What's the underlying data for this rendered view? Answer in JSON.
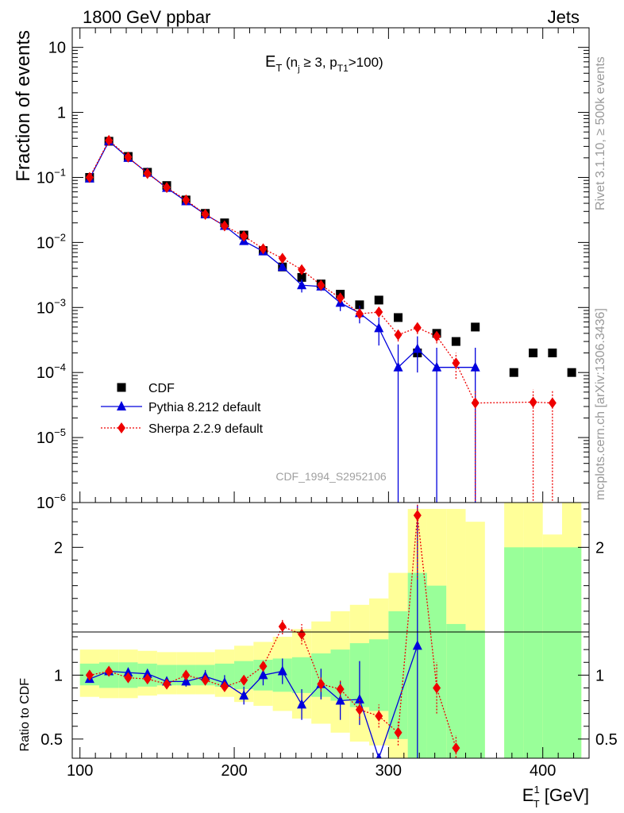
{
  "header": {
    "left": "1800 GeV ppbar",
    "right": "Jets",
    "title_main": "E",
    "title_sub": "T",
    "title_paren": " (n",
    "title_j": "j",
    "title_ge": " ≥ 3, p",
    "title_t1": "T1",
    "title_end": ">100)",
    "side_rivet": "Rivet 3.1.10, ≥ 500k events",
    "side_mcplots": "mcplots.cern.ch [arXiv:1306.3436]",
    "watermark": "CDF_1994_S2952106"
  },
  "colors": {
    "cdf": "#000000",
    "pythia": "#0000dd",
    "sherpa": "#ee0000",
    "band_inner": "#99ff99",
    "band_outer": "#ffff99"
  },
  "chart_data": [
    {
      "type": "scatter",
      "panel": "main",
      "ylabel": "Fraction of events",
      "yscale": "log",
      "ylim": [
        1e-06,
        20
      ],
      "xlim": [
        95,
        430
      ],
      "yticks": [
        {
          "v": 10,
          "m": "10",
          "e": ""
        },
        {
          "v": 1,
          "m": "1",
          "e": ""
        },
        {
          "v": 0.1,
          "m": "10",
          "e": "−1"
        },
        {
          "v": 0.01,
          "m": "10",
          "e": "−2"
        },
        {
          "v": 0.001,
          "m": "10",
          "e": "−3"
        },
        {
          "v": 0.0001,
          "m": "10",
          "e": "−4"
        },
        {
          "v": 1e-05,
          "m": "10",
          "e": "−5"
        },
        {
          "v": 1e-06,
          "m": "10",
          "e": "−6"
        }
      ],
      "legend": {
        "position": "bottom-left",
        "entries": [
          "CDF",
          "Pythia 8.212 default",
          "Sherpa 2.2.9 default"
        ]
      },
      "series": [
        {
          "name": "CDF",
          "marker": "square",
          "x": [
            106.25,
            118.75,
            131.25,
            143.75,
            156.25,
            168.75,
            181.25,
            193.75,
            206.25,
            218.75,
            231.25,
            243.75,
            256.25,
            268.75,
            281.25,
            293.75,
            306.25,
            318.75,
            331.25,
            343.75,
            356.25,
            381.25,
            393.75,
            406.25,
            418.75
          ],
          "y": [
            0.1,
            0.36,
            0.21,
            0.12,
            0.075,
            0.045,
            0.028,
            0.02,
            0.013,
            0.0075,
            0.0042,
            0.0029,
            0.0023,
            0.0016,
            0.0011,
            0.0013,
            0.0007,
            0.0002,
            0.0004,
            0.0003,
            0.0005,
            0.0001,
            0.0002,
            0.0002,
            0.0001
          ]
        },
        {
          "name": "Pythia 8.212 default",
          "marker": "triangle",
          "x": [
            106.25,
            118.75,
            131.25,
            143.75,
            156.25,
            168.75,
            181.25,
            193.75,
            206.25,
            218.75,
            231.25,
            243.75,
            256.25,
            268.75,
            281.25,
            293.75,
            306.25,
            318.75,
            331.25,
            356.25
          ],
          "y": [
            0.096,
            0.36,
            0.2,
            0.118,
            0.069,
            0.043,
            0.027,
            0.018,
            0.0105,
            0.0073,
            0.0042,
            0.0022,
            0.0021,
            0.00118,
            0.00082,
            0.00048,
            0.00012,
            0.00023,
            0.00012,
            0.00012
          ],
          "yerr_lo": [
            0.003,
            0.005,
            0.004,
            0.003,
            0.002,
            0.0015,
            0.001,
            0.0008,
            0.0006,
            0.0004,
            0.0003,
            0.0005,
            0.0003,
            0.0003,
            0.00025,
            0.00022,
            0.00012,
            0.00013,
            0.00012,
            0.00012
          ],
          "yerr_hi": [
            0.003,
            0.005,
            0.004,
            0.003,
            0.002,
            0.0015,
            0.001,
            0.0008,
            0.0006,
            0.0004,
            0.0003,
            0.0005,
            0.0003,
            0.0003,
            0.00025,
            0.00022,
            0.00015,
            0.00013,
            0.00012,
            0.00012
          ]
        },
        {
          "name": "Sherpa 2.2.9 default",
          "marker": "diamond",
          "x": [
            106.25,
            118.75,
            131.25,
            143.75,
            156.25,
            168.75,
            181.25,
            193.75,
            206.25,
            218.75,
            231.25,
            243.75,
            256.25,
            268.75,
            281.25,
            293.75,
            306.25,
            318.75,
            331.25,
            343.75,
            356.25,
            393.75,
            406.25
          ],
          "y": [
            0.1,
            0.37,
            0.205,
            0.115,
            0.07,
            0.045,
            0.027,
            0.018,
            0.0125,
            0.008,
            0.0057,
            0.0038,
            0.0022,
            0.0014,
            0.0008,
            0.00085,
            0.00038,
            0.00049,
            0.00036,
            0.00014,
            3.4e-05,
            3.5e-05,
            3.4e-05
          ],
          "yerr_lo": [
            0.002,
            0.004,
            0.003,
            0.002,
            0.0015,
            0.001,
            0.0007,
            0.0005,
            0.0004,
            0.0003,
            0.0003,
            0.0004,
            0.0002,
            0.0002,
            0.00012,
            0.00012,
            8e-05,
            0.0001,
            8e-05,
            6e-05,
            3.4e-05,
            3.5e-05,
            3.4e-05
          ],
          "yerr_hi": [
            0.002,
            0.004,
            0.003,
            0.002,
            0.0015,
            0.001,
            0.0007,
            0.0005,
            0.0004,
            0.0003,
            0.0003,
            0.0004,
            0.0002,
            0.0002,
            0.00012,
            0.00012,
            8e-05,
            0.0001,
            8e-05,
            6e-05,
            2e-05,
            2e-05,
            2e-05
          ]
        }
      ]
    },
    {
      "type": "scatter",
      "panel": "ratio",
      "ylabel": "Ratio to CDF",
      "xlabel_main": "E",
      "xlabel_sup": "1",
      "xlabel_sub": "T",
      "xlabel_unit": " [GeV]",
      "ylim": [
        0.35,
        2.35
      ],
      "xlim": [
        95,
        430
      ],
      "yticks": [
        {
          "v": 0.5,
          "label": "0.5"
        },
        {
          "v": 1,
          "label": "1"
        },
        {
          "v": 2,
          "label": "2"
        }
      ],
      "xticks": [
        {
          "v": 100,
          "label": "100"
        },
        {
          "v": 200,
          "label": "200"
        },
        {
          "v": 300,
          "label": "300"
        },
        {
          "v": 400,
          "label": "400"
        }
      ],
      "bands": {
        "edges": [
          100,
          112.5,
          125,
          137.5,
          150,
          162.5,
          175,
          187.5,
          200,
          212.5,
          225,
          237.5,
          250,
          262.5,
          275,
          287.5,
          300,
          312.5,
          325,
          337.5,
          350,
          362.5,
          375,
          387.5,
          400,
          412.5,
          425
        ],
        "inner_lo": [
          0.92,
          0.9,
          0.9,
          0.91,
          0.92,
          0.92,
          0.92,
          0.91,
          0.89,
          0.88,
          0.87,
          0.86,
          0.83,
          0.8,
          0.75,
          0.72,
          0.5,
          0.35,
          0.35,
          0.35,
          0.35,
          null,
          0.35,
          0.35,
          0.35,
          0.35
        ],
        "inner_hi": [
          1.09,
          1.1,
          1.1,
          1.09,
          1.08,
          1.08,
          1.08,
          1.09,
          1.11,
          1.12,
          1.13,
          1.14,
          1.17,
          1.2,
          1.25,
          1.28,
          1.5,
          1.8,
          1.7,
          1.4,
          1.35,
          null,
          2.0,
          2.0,
          2.0,
          2.0
        ],
        "outer_lo": [
          0.83,
          0.82,
          0.82,
          0.84,
          0.85,
          0.85,
          0.85,
          0.83,
          0.79,
          0.76,
          0.72,
          0.66,
          0.62,
          0.55,
          0.48,
          0.45,
          0.35,
          0.35,
          0.35,
          0.35,
          0.35,
          null,
          0.35,
          0.35,
          0.35,
          0.35
        ],
        "outer_hi": [
          1.2,
          1.2,
          1.2,
          1.19,
          1.18,
          1.18,
          1.18,
          1.2,
          1.23,
          1.26,
          1.3,
          1.36,
          1.42,
          1.5,
          1.55,
          1.6,
          1.8,
          2.3,
          2.3,
          2.3,
          2.2,
          null,
          2.35,
          2.35,
          2.1,
          2.35
        ]
      },
      "series": [
        {
          "name": "Pythia 8.212 default",
          "marker": "triangle",
          "x": [
            106.25,
            118.75,
            131.25,
            143.75,
            156.25,
            168.75,
            181.25,
            193.75,
            206.25,
            218.75,
            231.25,
            243.75,
            256.25,
            268.75,
            281.25,
            293.75,
            318.75
          ],
          "y": [
            0.97,
            1.03,
            1.02,
            1.01,
            0.95,
            0.95,
            0.99,
            0.94,
            0.84,
            1.0,
            1.03,
            0.77,
            0.93,
            0.8,
            0.81,
            0.35,
            1.23
          ],
          "yerr_lo": [
            0.03,
            0.03,
            0.03,
            0.03,
            0.03,
            0.04,
            0.05,
            0.06,
            0.07,
            0.08,
            0.1,
            0.12,
            0.12,
            0.15,
            0.2,
            0.0,
            0.88
          ],
          "yerr_hi": [
            0.03,
            0.03,
            0.03,
            0.03,
            0.03,
            0.04,
            0.05,
            0.06,
            0.07,
            0.08,
            0.1,
            0.12,
            0.12,
            0.15,
            0.3,
            0.0,
            1.1
          ]
        },
        {
          "name": "Sherpa 2.2.9 default",
          "marker": "diamond",
          "x": [
            106.25,
            118.75,
            131.25,
            143.75,
            156.25,
            168.75,
            181.25,
            193.75,
            206.25,
            218.75,
            231.25,
            243.75,
            256.25,
            268.75,
            281.25,
            293.75,
            306.25,
            318.75,
            331.25,
            343.75
          ],
          "y": [
            1.0,
            1.03,
            0.98,
            0.97,
            0.93,
            1.0,
            0.96,
            0.91,
            0.96,
            1.07,
            1.38,
            1.32,
            0.93,
            0.89,
            0.73,
            0.68,
            0.55,
            2.25,
            0.9,
            0.43
          ],
          "yerr_lo": [
            0.02,
            0.02,
            0.02,
            0.02,
            0.02,
            0.02,
            0.03,
            0.03,
            0.03,
            0.04,
            0.06,
            0.08,
            0.06,
            0.07,
            0.08,
            0.09,
            0.1,
            0.5,
            0.2,
            0.1
          ],
          "yerr_hi": [
            0.02,
            0.02,
            0.02,
            0.02,
            0.02,
            0.02,
            0.03,
            0.03,
            0.03,
            0.04,
            0.06,
            0.08,
            0.06,
            0.07,
            0.08,
            0.09,
            0.1,
            0.5,
            0.2,
            0.1
          ]
        }
      ]
    }
  ]
}
